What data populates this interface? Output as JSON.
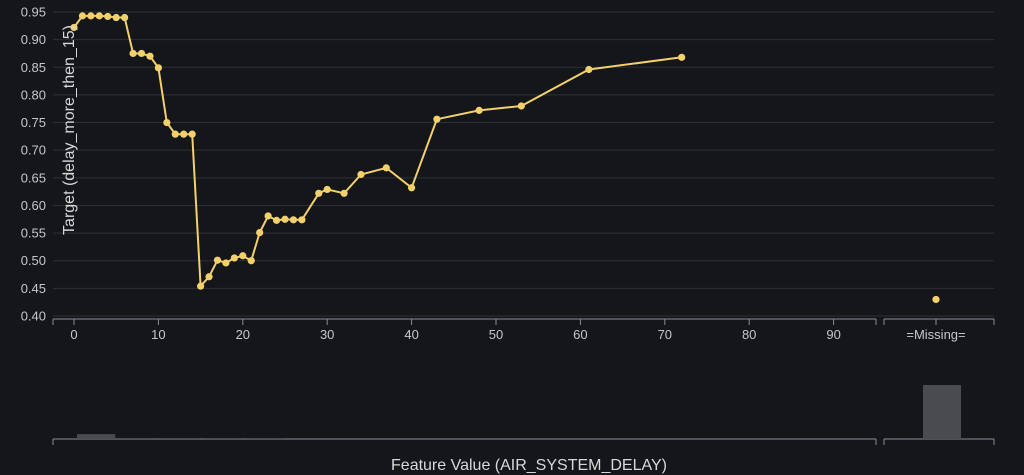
{
  "chart_data": {
    "type": "line",
    "xlabel": "Feature Value (AIR_SYSTEM_DELAY)",
    "ylabel": "Target (delay_more_then_15)",
    "xlim": [
      -1.5,
      95
    ],
    "ylim": [
      0.4,
      0.95
    ],
    "x_ticks": [
      0,
      10,
      20,
      30,
      40,
      50,
      60,
      70,
      80,
      90
    ],
    "y_ticks": [
      "0.40",
      "0.45",
      "0.50",
      "0.55",
      "0.60",
      "0.65",
      "0.70",
      "0.75",
      "0.80",
      "0.85",
      "0.90",
      "0.95"
    ],
    "grid": "horizontal",
    "colors": {
      "series": "#f2d06b",
      "histogram": "#4a4b4e",
      "background": "#141619"
    },
    "series": [
      {
        "points": [
          [
            0,
            0.922
          ],
          [
            1,
            0.943
          ],
          [
            2,
            0.943
          ],
          [
            3,
            0.943
          ],
          [
            4,
            0.942
          ],
          [
            5,
            0.94
          ],
          [
            6,
            0.94
          ],
          [
            7,
            0.875
          ],
          [
            8,
            0.875
          ],
          [
            9,
            0.87
          ],
          [
            10,
            0.849
          ],
          [
            11,
            0.75
          ],
          [
            12,
            0.729
          ],
          [
            13,
            0.729
          ],
          [
            14,
            0.729
          ],
          [
            15,
            0.454
          ],
          [
            16,
            0.471
          ],
          [
            17,
            0.501
          ],
          [
            18,
            0.496
          ],
          [
            19,
            0.505
          ],
          [
            20,
            0.509
          ],
          [
            21,
            0.5
          ],
          [
            22,
            0.551
          ],
          [
            23,
            0.581
          ],
          [
            24,
            0.573
          ],
          [
            25,
            0.575
          ],
          [
            26,
            0.574
          ],
          [
            27,
            0.574
          ],
          [
            29,
            0.622
          ],
          [
            30,
            0.629
          ],
          [
            32,
            0.622
          ],
          [
            34,
            0.656
          ],
          [
            37,
            0.668
          ],
          [
            40,
            0.632
          ],
          [
            43,
            0.756
          ],
          [
            48,
            0.772
          ],
          [
            53,
            0.78
          ],
          [
            61,
            0.846
          ],
          [
            72,
            0.868
          ]
        ]
      }
    ],
    "missing": {
      "label": "=Missing=",
      "value": 0.43
    },
    "histogram": {
      "bins": [
        {
          "from": 0,
          "to": 5,
          "frac": 0.09
        },
        {
          "from": 5,
          "to": 10,
          "frac": 0.015
        },
        {
          "from": 10,
          "to": 15,
          "frac": 0.015
        },
        {
          "from": 15,
          "to": 20,
          "frac": 0.015
        },
        {
          "from": 20,
          "to": 25,
          "frac": 0.015
        }
      ],
      "missing_frac": 1.0
    }
  }
}
